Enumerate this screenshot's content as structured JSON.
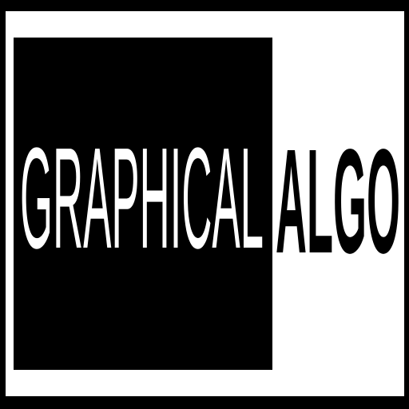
{
  "logo": {
    "text_light": "GRAPHICAL",
    "text_dark": "ALGO"
  }
}
